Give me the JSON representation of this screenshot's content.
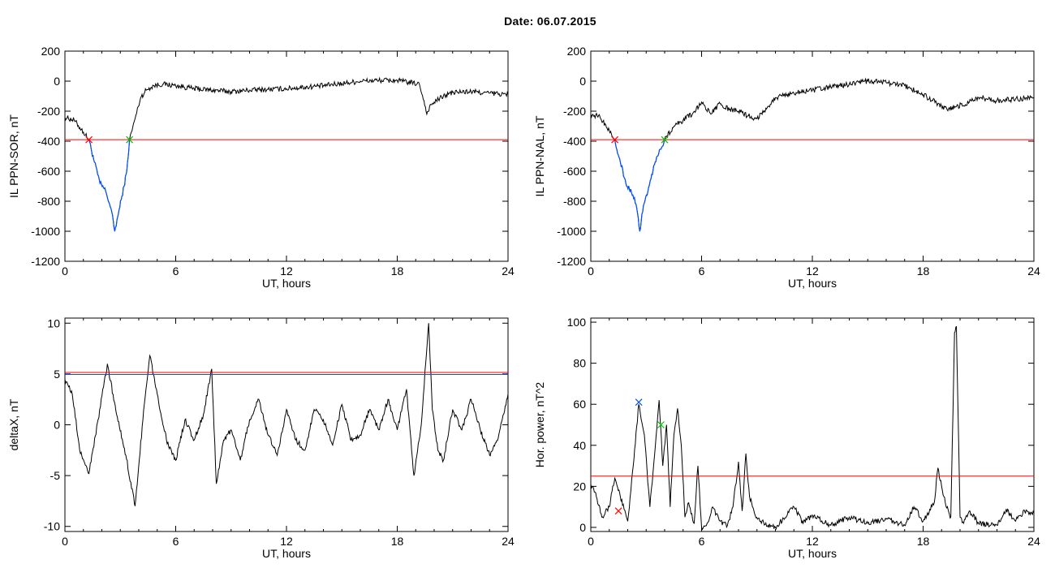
{
  "title": "Date:  06.07.2015",
  "panels": [
    {
      "id": "sor",
      "ylabel": "IL PPN-SOR, nT",
      "xlabel": "UT, hours",
      "xlim": [
        0,
        24
      ],
      "ylim": [
        -1200,
        200
      ],
      "xticks": [
        0,
        6,
        12,
        18,
        24
      ],
      "yticks": [
        -1200,
        -1000,
        -800,
        -600,
        -400,
        -200,
        0,
        200
      ],
      "threshold": {
        "y": -390,
        "color": "#ff0000"
      },
      "markers": [
        {
          "x": 1.3,
          "y": -390,
          "color": "#ff0000"
        },
        {
          "x": 3.5,
          "y": -390,
          "color": "#00c000"
        }
      ],
      "highlight": {
        "from": 1.3,
        "to": 3.5,
        "color": "#0050ff"
      },
      "series": {
        "x": [
          0,
          0.5,
          1.0,
          1.3,
          1.6,
          1.9,
          2.2,
          2.5,
          2.7,
          2.9,
          3.05,
          3.2,
          3.35,
          3.5,
          3.8,
          4.1,
          4.4,
          4.8,
          5.3,
          6,
          7,
          8,
          9,
          10,
          11,
          12,
          13,
          14,
          15,
          16,
          17,
          18,
          19.2,
          19.45,
          19.6,
          19.75,
          20,
          20.5,
          21,
          22,
          23,
          24
        ],
        "y": [
          -240,
          -260,
          -340,
          -390,
          -540,
          -680,
          -730,
          -850,
          -1000,
          -880,
          -790,
          -700,
          -600,
          -390,
          -250,
          -110,
          -60,
          -30,
          -20,
          -30,
          -50,
          -60,
          -70,
          -60,
          -55,
          -50,
          -40,
          -30,
          -15,
          0,
          5,
          5,
          -20,
          -130,
          -220,
          -170,
          -140,
          -100,
          -75,
          -70,
          -80,
          -90
        ]
      }
    },
    {
      "id": "nal",
      "ylabel": "IL PPN-NAL, nT",
      "xlabel": "UT, hours",
      "xlim": [
        0,
        24
      ],
      "ylim": [
        -1200,
        200
      ],
      "xticks": [
        0,
        6,
        12,
        18,
        24
      ],
      "yticks": [
        -1200,
        -1000,
        -800,
        -600,
        -400,
        -200,
        0,
        200
      ],
      "threshold": {
        "y": -390,
        "color": "#ff0000"
      },
      "markers": [
        {
          "x": 1.3,
          "y": -390,
          "color": "#ff0000"
        },
        {
          "x": 4.0,
          "y": -390,
          "color": "#00c000"
        }
      ],
      "highlight": {
        "from": 1.3,
        "to": 4.0,
        "color": "#0050ff"
      },
      "series": {
        "x": [
          0,
          0.5,
          1.0,
          1.3,
          1.6,
          1.9,
          2.2,
          2.45,
          2.65,
          2.85,
          3.05,
          3.3,
          3.6,
          4.0,
          4.5,
          5.0,
          5.5,
          6,
          6.5,
          7,
          7.5,
          8,
          8.5,
          9,
          10,
          11,
          12,
          13,
          14,
          15,
          16,
          17,
          18,
          18.8,
          19.3,
          19.8,
          20.5,
          21,
          22,
          23,
          24
        ],
        "y": [
          -220,
          -240,
          -330,
          -390,
          -540,
          -680,
          -740,
          -820,
          -1000,
          -830,
          -760,
          -620,
          -500,
          -390,
          -300,
          -260,
          -220,
          -140,
          -220,
          -150,
          -190,
          -200,
          -230,
          -250,
          -110,
          -80,
          -60,
          -40,
          -20,
          0,
          -10,
          -30,
          -90,
          -150,
          -190,
          -170,
          -140,
          -110,
          -130,
          -120,
          -110
        ]
      }
    },
    {
      "id": "deltax",
      "ylabel": "deltaX, nT",
      "xlabel": "UT, hours",
      "xlim": [
        0,
        24
      ],
      "ylim": [
        -10.5,
        10.5
      ],
      "xticks": [
        0,
        6,
        12,
        18,
        24
      ],
      "yticks": [
        -10,
        -5,
        0,
        5,
        10
      ],
      "hlines": [
        {
          "y": 5.15,
          "color": "#ff0000"
        },
        {
          "y": 4.95,
          "color": "#0050ff"
        }
      ],
      "series": {
        "x": [
          0,
          0.4,
          0.8,
          1.3,
          1.8,
          2.3,
          2.8,
          3.3,
          3.8,
          4.3,
          4.6,
          5.0,
          5.5,
          6.0,
          6.5,
          7.0,
          7.5,
          7.95,
          8.2,
          8.6,
          9.0,
          9.5,
          10.0,
          10.5,
          11.0,
          11.5,
          12.0,
          12.5,
          13.0,
          13.5,
          14.0,
          14.5,
          15.0,
          15.5,
          16.0,
          16.5,
          17.0,
          17.5,
          18.0,
          18.5,
          18.9,
          19.3,
          19.7,
          19.9,
          20.2,
          20.5,
          21.0,
          21.5,
          22.0,
          22.5,
          23.0,
          23.5,
          24.0
        ],
        "y": [
          4.5,
          3.0,
          -2.5,
          -4.8,
          0.5,
          6.0,
          1.0,
          -3.0,
          -8.0,
          2.0,
          6.8,
          3.0,
          -1.5,
          -3.5,
          0.5,
          -1.5,
          1.0,
          5.5,
          -5.8,
          -1.5,
          -0.5,
          -3.5,
          0.5,
          2.5,
          -1.0,
          -3.0,
          1.5,
          -1.5,
          -2.5,
          1.5,
          0.5,
          -2.0,
          2.0,
          -1.5,
          -1.0,
          1.5,
          -0.5,
          2.5,
          -0.5,
          3.5,
          -5.0,
          0.0,
          10.0,
          1.5,
          -2.5,
          -3.5,
          1.5,
          -0.5,
          2.5,
          -0.5,
          -3.0,
          -1.0,
          3.0
        ]
      }
    },
    {
      "id": "hpower",
      "ylabel": "Hor. power, nT^2",
      "xlabel": "UT, hours",
      "xlim": [
        0,
        24
      ],
      "ylim": [
        -2,
        102
      ],
      "xticks": [
        0,
        6,
        12,
        18,
        24
      ],
      "yticks": [
        0,
        20,
        40,
        60,
        80,
        100
      ],
      "threshold": {
        "y": 25,
        "color": "#ff0000"
      },
      "markers": [
        {
          "x": 1.5,
          "y": 8,
          "color": "#ff0000"
        },
        {
          "x": 2.6,
          "y": 61,
          "color": "#0050ff"
        },
        {
          "x": 3.8,
          "y": 50,
          "color": "#00c000"
        }
      ],
      "series": {
        "x": [
          0,
          0.3,
          0.6,
          1.0,
          1.3,
          1.6,
          2.0,
          2.3,
          2.6,
          2.9,
          3.2,
          3.5,
          3.7,
          3.9,
          4.1,
          4.3,
          4.5,
          4.7,
          4.9,
          5.1,
          5.3,
          5.6,
          5.8,
          6.0,
          6.3,
          6.6,
          7.0,
          7.4,
          7.7,
          8.0,
          8.2,
          8.4,
          8.6,
          8.9,
          9.2,
          9.6,
          10,
          11,
          11.5,
          12,
          13,
          14,
          15,
          16,
          17,
          17.5,
          18,
          18.6,
          18.8,
          19.0,
          19.2,
          19.5,
          19.7,
          19.8,
          20.0,
          20.2,
          20.5,
          21,
          22,
          22.5,
          23,
          23.5,
          24
        ],
        "y": [
          21,
          15,
          5,
          10,
          24,
          15,
          3,
          30,
          60,
          45,
          10,
          40,
          62,
          30,
          50,
          10,
          45,
          58,
          40,
          5,
          12,
          2,
          30,
          0,
          2,
          10,
          3,
          1,
          10,
          32,
          8,
          36,
          15,
          6,
          3,
          1,
          0,
          10,
          2,
          6,
          1,
          5,
          2,
          4,
          1,
          10,
          3,
          12,
          29,
          20,
          12,
          5,
          95,
          98,
          5,
          2,
          8,
          2,
          1,
          9,
          3,
          8,
          7
        ]
      }
    }
  ]
}
